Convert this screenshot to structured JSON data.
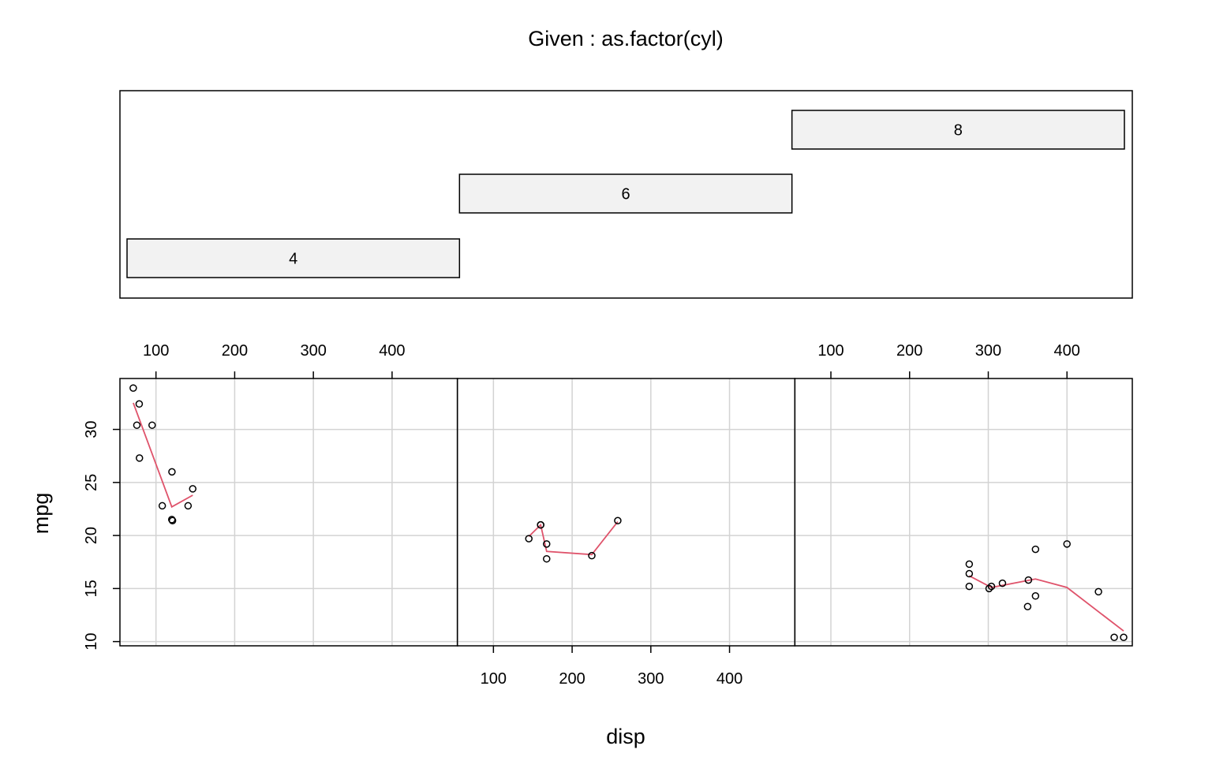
{
  "chart_data": {
    "type": "scatter",
    "title": "Given : as.factor(cyl)",
    "xlabel": "disp",
    "ylabel": "mpg",
    "xlim": [
      54.2,
      483.0
    ],
    "ylim": [
      9.6,
      34.8
    ],
    "x_ticks": [
      100,
      200,
      300,
      400
    ],
    "y_ticks": [
      10,
      15,
      20,
      25,
      30
    ],
    "grid": true,
    "given_levels": [
      "4",
      "6",
      "8"
    ],
    "point_color": "#000000",
    "smooth_color": "#DF536B",
    "panels": [
      {
        "level": "4",
        "points": [
          {
            "x": 108.0,
            "y": 22.8
          },
          {
            "x": 146.7,
            "y": 24.4
          },
          {
            "x": 140.8,
            "y": 22.8
          },
          {
            "x": 78.7,
            "y": 32.4
          },
          {
            "x": 75.7,
            "y": 30.4
          },
          {
            "x": 71.1,
            "y": 33.9
          },
          {
            "x": 120.1,
            "y": 21.5
          },
          {
            "x": 79.0,
            "y": 27.3
          },
          {
            "x": 120.3,
            "y": 26.0
          },
          {
            "x": 95.1,
            "y": 30.4
          },
          {
            "x": 121.0,
            "y": 21.4
          }
        ],
        "smooth": [
          {
            "x": 71.1,
            "y": 32.5
          },
          {
            "x": 120.1,
            "y": 22.7
          },
          {
            "x": 146.7,
            "y": 23.8
          }
        ]
      },
      {
        "level": "6",
        "points": [
          {
            "x": 160.0,
            "y": 21.0
          },
          {
            "x": 160.0,
            "y": 21.0
          },
          {
            "x": 258.0,
            "y": 21.4
          },
          {
            "x": 225.0,
            "y": 18.1
          },
          {
            "x": 167.6,
            "y": 19.2
          },
          {
            "x": 167.6,
            "y": 17.8
          },
          {
            "x": 145.0,
            "y": 19.7
          }
        ],
        "smooth": [
          {
            "x": 145.0,
            "y": 19.9
          },
          {
            "x": 160.0,
            "y": 21.0
          },
          {
            "x": 167.6,
            "y": 18.5
          },
          {
            "x": 225.0,
            "y": 18.2
          },
          {
            "x": 258.0,
            "y": 21.3
          }
        ]
      },
      {
        "level": "8",
        "points": [
          {
            "x": 360.0,
            "y": 18.7
          },
          {
            "x": 360.0,
            "y": 14.3
          },
          {
            "x": 275.8,
            "y": 16.4
          },
          {
            "x": 275.8,
            "y": 17.3
          },
          {
            "x": 275.8,
            "y": 15.2
          },
          {
            "x": 472.0,
            "y": 10.4
          },
          {
            "x": 460.0,
            "y": 10.4
          },
          {
            "x": 440.0,
            "y": 14.7
          },
          {
            "x": 318.0,
            "y": 15.5
          },
          {
            "x": 304.0,
            "y": 15.2
          },
          {
            "x": 350.0,
            "y": 13.3
          },
          {
            "x": 400.0,
            "y": 19.2
          },
          {
            "x": 351.0,
            "y": 15.8
          },
          {
            "x": 301.0,
            "y": 15.0
          }
        ],
        "smooth": [
          {
            "x": 275.8,
            "y": 16.2
          },
          {
            "x": 304.0,
            "y": 15.1
          },
          {
            "x": 360.0,
            "y": 15.9
          },
          {
            "x": 400.0,
            "y": 15.1
          },
          {
            "x": 472.0,
            "y": 11.0
          }
        ]
      }
    ]
  }
}
